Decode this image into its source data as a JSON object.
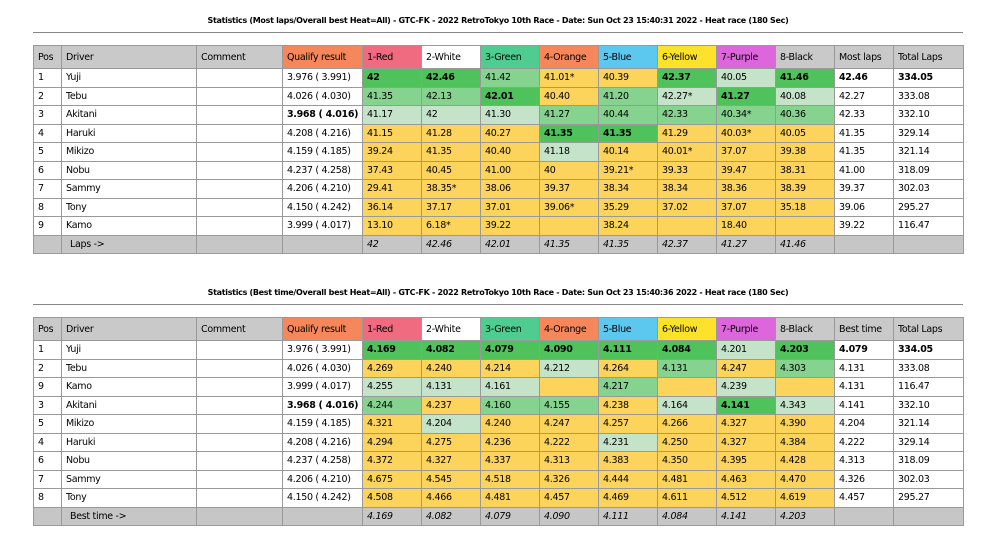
{
  "colors": {
    "qualify": "#f5875a",
    "1-Red": "#f06a80",
    "2-White": "#ffffff",
    "3-Green": "#4fcc8f",
    "4-Orange": "#f5875a",
    "5-Blue": "#5cc8f0",
    "6-Yellow": "#fce22a",
    "7-Purple": "#dd66dd",
    "8-Black": "#c9c9c9"
  },
  "tables": [
    {
      "title": "Statistics (Most laps/Overall best Heat=All) - GTC-FK - 2022 RetroTokyo 10th Race - Date: Sun Oct 23 15:40:31 2022 - Heat race (180 Sec)",
      "headers": [
        "Pos",
        "Driver",
        "Comment",
        "Qualify result",
        "1-Red",
        "2-White",
        "3-Green",
        "4-Orange",
        "5-Blue",
        "6-Yellow",
        "7-Purple",
        "8-Black",
        "Most laps",
        "Total Laps"
      ],
      "rows": [
        {
          "pos": "1",
          "driver": "Yuji",
          "qualify": "3.976 ( 3.991)",
          "cells": [
            [
              "42",
              "Gb"
            ],
            [
              "42.46",
              "Gb"
            ],
            [
              "41.42",
              "M"
            ],
            [
              "41.01*",
              "Y"
            ],
            [
              "40.39",
              "Y"
            ],
            [
              "42.37",
              "Gb"
            ],
            [
              "40.05",
              "L"
            ],
            [
              "41.46",
              "Gb"
            ]
          ],
          "best": "42.46",
          "total": "334.05",
          "bold": true
        },
        {
          "pos": "2",
          "driver": "Tebu",
          "qualify": "4.026 ( 4.030)",
          "cells": [
            [
              "41.35",
              "M"
            ],
            [
              "42.13",
              "M"
            ],
            [
              "42.01",
              "Gb"
            ],
            [
              "40.40",
              "Y"
            ],
            [
              "41.20",
              "M"
            ],
            [
              "42.27*",
              "L"
            ],
            [
              "41.27",
              "Gb"
            ],
            [
              "40.08",
              "L"
            ]
          ],
          "best": "42.27",
          "total": "333.08"
        },
        {
          "pos": "3",
          "driver": "Akitani",
          "qualify": "3.968 ( 4.016)",
          "qbold": true,
          "cells": [
            [
              "41.17",
              "L"
            ],
            [
              "42",
              "L"
            ],
            [
              "41.30",
              "L"
            ],
            [
              "41.27",
              "M"
            ],
            [
              "40.44",
              "M"
            ],
            [
              "42.33",
              "M"
            ],
            [
              "40.34*",
              "M"
            ],
            [
              "40.36",
              "M"
            ]
          ],
          "best": "42.33",
          "total": "332.10"
        },
        {
          "pos": "4",
          "driver": "Haruki",
          "qualify": "4.208 ( 4.216)",
          "cells": [
            [
              "41.15",
              "Y"
            ],
            [
              "41.28",
              "Y"
            ],
            [
              "40.27",
              "Y"
            ],
            [
              "41.35",
              "Gb"
            ],
            [
              "41.35",
              "Gb"
            ],
            [
              "41.29",
              "Y"
            ],
            [
              "40.03*",
              "Y"
            ],
            [
              "40.05",
              "Y"
            ]
          ],
          "best": "41.35",
          "total": "329.14"
        },
        {
          "pos": "5",
          "driver": "Mikizo",
          "qualify": "4.159 ( 4.185)",
          "cells": [
            [
              "39.24",
              "Y"
            ],
            [
              "41.35",
              "Y"
            ],
            [
              "40.40",
              "Y"
            ],
            [
              "41.18",
              "L"
            ],
            [
              "40.14",
              "Y"
            ],
            [
              "40.01*",
              "Y"
            ],
            [
              "37.07",
              "Y"
            ],
            [
              "39.38",
              "Y"
            ]
          ],
          "best": "41.35",
          "total": "321.14"
        },
        {
          "pos": "6",
          "driver": "Nobu",
          "qualify": "4.237 ( 4.258)",
          "cells": [
            [
              "37.43",
              "Y"
            ],
            [
              "40.45",
              "Y"
            ],
            [
              "41.00",
              "Y"
            ],
            [
              "40",
              "Y"
            ],
            [
              "39.21*",
              "Y"
            ],
            [
              "39.33",
              "Y"
            ],
            [
              "39.47",
              "Y"
            ],
            [
              "38.31",
              "Y"
            ]
          ],
          "best": "41.00",
          "total": "318.09"
        },
        {
          "pos": "7",
          "driver": "Sammy",
          "qualify": "4.206 ( 4.210)",
          "cells": [
            [
              "29.41",
              "Y"
            ],
            [
              "38.35*",
              "Y"
            ],
            [
              "38.06",
              "Y"
            ],
            [
              "39.37",
              "Y"
            ],
            [
              "38.34",
              "Y"
            ],
            [
              "38.34",
              "Y"
            ],
            [
              "38.36",
              "Y"
            ],
            [
              "38.39",
              "Y"
            ]
          ],
          "best": "39.37",
          "total": "302.03"
        },
        {
          "pos": "8",
          "driver": "Tony",
          "qualify": "4.150 ( 4.242)",
          "cells": [
            [
              "36.14",
              "Y"
            ],
            [
              "37.17",
              "Y"
            ],
            [
              "37.01",
              "Y"
            ],
            [
              "39.06*",
              "Y"
            ],
            [
              "35.29",
              "Y"
            ],
            [
              "37.02",
              "Y"
            ],
            [
              "37.07",
              "Y"
            ],
            [
              "35.18",
              "Y"
            ]
          ],
          "best": "39.06",
          "total": "295.27"
        },
        {
          "pos": "9",
          "driver": "Kamo",
          "qualify": "3.999 ( 4.017)",
          "cells": [
            [
              "13.10",
              "Y"
            ],
            [
              "6.18*",
              "Y"
            ],
            [
              "39.22",
              "Y"
            ],
            [
              "",
              "Y"
            ],
            [
              "38.24",
              "Y"
            ],
            [
              "",
              "Y"
            ],
            [
              "18.40",
              "Y"
            ],
            [
              "",
              "Y"
            ]
          ],
          "best": "39.22",
          "total": "116.47"
        }
      ],
      "footer_label": "Laps ->",
      "footer": [
        "42",
        "42.46",
        "42.01",
        "41.35",
        "41.35",
        "42.37",
        "41.27",
        "41.46"
      ]
    },
    {
      "title": "Statistics (Best time/Overall best Heat=All) - GTC-FK - 2022 RetroTokyo 10th Race - Date: Sun Oct 23 15:40:36 2022 - Heat race (180 Sec)",
      "headers": [
        "Pos",
        "Driver",
        "Comment",
        "Qualify result",
        "1-Red",
        "2-White",
        "3-Green",
        "4-Orange",
        "5-Blue",
        "6-Yellow",
        "7-Purple",
        "8-Black",
        "Best time",
        "Total Laps"
      ],
      "rows": [
        {
          "pos": "1",
          "driver": "Yuji",
          "qualify": "3.976 ( 3.991)",
          "cells": [
            [
              "4.169",
              "Gb"
            ],
            [
              "4.082",
              "Gb"
            ],
            [
              "4.079",
              "Gb"
            ],
            [
              "4.090",
              "Gb"
            ],
            [
              "4.111",
              "Gb"
            ],
            [
              "4.084",
              "Gb"
            ],
            [
              "4.201",
              "L"
            ],
            [
              "4.203",
              "Gb"
            ]
          ],
          "best": "4.079",
          "total": "334.05",
          "bold": true
        },
        {
          "pos": "2",
          "driver": "Tebu",
          "qualify": "4.026 ( 4.030)",
          "cells": [
            [
              "4.269",
              "Y"
            ],
            [
              "4.240",
              "Y"
            ],
            [
              "4.214",
              "Y"
            ],
            [
              "4.212",
              "L"
            ],
            [
              "4.264",
              "Y"
            ],
            [
              "4.131",
              "M"
            ],
            [
              "4.247",
              "Y"
            ],
            [
              "4.303",
              "M"
            ]
          ],
          "best": "4.131",
          "total": "333.08"
        },
        {
          "pos": "9",
          "driver": "Kamo",
          "qualify": "3.999 ( 4.017)",
          "cells": [
            [
              "4.255",
              "L"
            ],
            [
              "4.131",
              "L"
            ],
            [
              "4.161",
              "L"
            ],
            [
              "",
              "Y"
            ],
            [
              "4.217",
              "M"
            ],
            [
              "",
              "Y"
            ],
            [
              "4.239",
              "L"
            ],
            [
              "",
              "Y"
            ]
          ],
          "best": "4.131",
          "total": "116.47"
        },
        {
          "pos": "3",
          "driver": "Akitani",
          "qualify": "3.968 ( 4.016)",
          "qbold": true,
          "cells": [
            [
              "4.244",
              "M"
            ],
            [
              "4.237",
              "Y"
            ],
            [
              "4.160",
              "M"
            ],
            [
              "4.155",
              "M"
            ],
            [
              "4.238",
              "Y"
            ],
            [
              "4.164",
              "L"
            ],
            [
              "4.141",
              "Gb"
            ],
            [
              "4.343",
              "L"
            ]
          ],
          "best": "4.141",
          "total": "332.10"
        },
        {
          "pos": "5",
          "driver": "Mikizo",
          "qualify": "4.159 ( 4.185)",
          "cells": [
            [
              "4.321",
              "Y"
            ],
            [
              "4.204",
              "L"
            ],
            [
              "4.240",
              "Y"
            ],
            [
              "4.247",
              "Y"
            ],
            [
              "4.257",
              "Y"
            ],
            [
              "4.266",
              "Y"
            ],
            [
              "4.327",
              "Y"
            ],
            [
              "4.390",
              "Y"
            ]
          ],
          "best": "4.204",
          "total": "321.14"
        },
        {
          "pos": "4",
          "driver": "Haruki",
          "qualify": "4.208 ( 4.216)",
          "cells": [
            [
              "4.294",
              "Y"
            ],
            [
              "4.275",
              "Y"
            ],
            [
              "4.236",
              "Y"
            ],
            [
              "4.222",
              "Y"
            ],
            [
              "4.231",
              "L"
            ],
            [
              "4.250",
              "Y"
            ],
            [
              "4.327",
              "Y"
            ],
            [
              "4.384",
              "Y"
            ]
          ],
          "best": "4.222",
          "total": "329.14"
        },
        {
          "pos": "6",
          "driver": "Nobu",
          "qualify": "4.237 ( 4.258)",
          "cells": [
            [
              "4.372",
              "Y"
            ],
            [
              "4.327",
              "Y"
            ],
            [
              "4.337",
              "Y"
            ],
            [
              "4.313",
              "Y"
            ],
            [
              "4.383",
              "Y"
            ],
            [
              "4.350",
              "Y"
            ],
            [
              "4.395",
              "Y"
            ],
            [
              "4.428",
              "Y"
            ]
          ],
          "best": "4.313",
          "total": "318.09"
        },
        {
          "pos": "7",
          "driver": "Sammy",
          "qualify": "4.206 ( 4.210)",
          "cells": [
            [
              "4.675",
              "Y"
            ],
            [
              "4.545",
              "Y"
            ],
            [
              "4.518",
              "Y"
            ],
            [
              "4.326",
              "Y"
            ],
            [
              "4.444",
              "Y"
            ],
            [
              "4.481",
              "Y"
            ],
            [
              "4.463",
              "Y"
            ],
            [
              "4.470",
              "Y"
            ]
          ],
          "best": "4.326",
          "total": "302.03"
        },
        {
          "pos": "8",
          "driver": "Tony",
          "qualify": "4.150 ( 4.242)",
          "cells": [
            [
              "4.508",
              "Y"
            ],
            [
              "4.466",
              "Y"
            ],
            [
              "4.481",
              "Y"
            ],
            [
              "4.457",
              "Y"
            ],
            [
              "4.469",
              "Y"
            ],
            [
              "4.611",
              "Y"
            ],
            [
              "4.512",
              "Y"
            ],
            [
              "4.619",
              "Y"
            ]
          ],
          "best": "4.457",
          "total": "295.27"
        }
      ],
      "footer_label": "Best time ->",
      "footer": [
        "4.169",
        "4.082",
        "4.079",
        "4.090",
        "4.111",
        "4.084",
        "4.141",
        "4.203"
      ]
    }
  ]
}
